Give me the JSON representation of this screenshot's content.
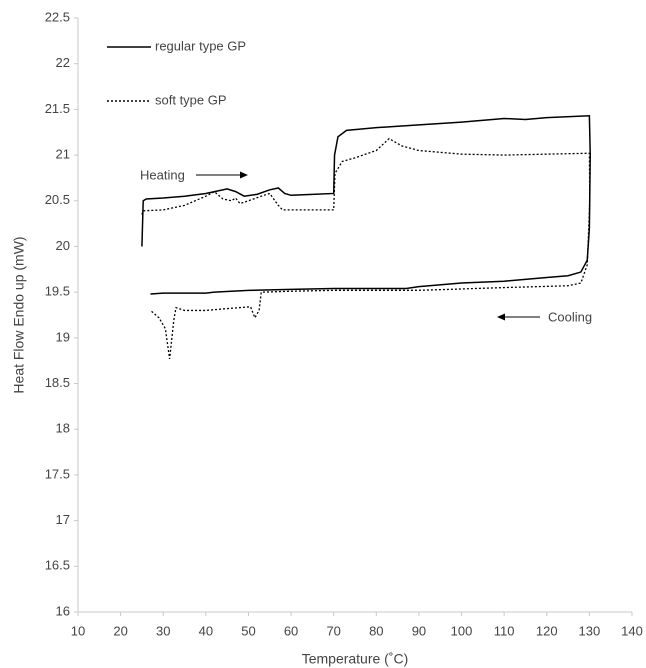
{
  "chart_data": {
    "type": "line",
    "x_label": "Temperature (˚C)",
    "y_label": "Heat Flow Endo up (mW)",
    "xlim": [
      10,
      140
    ],
    "xticks": [
      10,
      20,
      30,
      40,
      50,
      60,
      70,
      80,
      90,
      100,
      110,
      120,
      130,
      140
    ],
    "ylim": [
      16,
      22.5
    ],
    "yticks": [
      16,
      16.5,
      17,
      17.5,
      18,
      18.5,
      19,
      19.5,
      20,
      20.5,
      21,
      21.5,
      22,
      22.5
    ],
    "grid": false,
    "legend": "top-left",
    "annotations": [
      "Heating",
      "Cooling"
    ],
    "series": [
      {
        "name": "regular type GP",
        "color": "#000000",
        "line_style": "solid",
        "x": [
          25,
          25.3,
          26,
          30,
          35,
          40,
          43,
          45,
          47,
          49,
          52,
          55,
          57,
          58.5,
          60,
          65,
          70,
          70.2,
          71,
          73,
          80,
          90,
          100,
          110,
          115,
          120,
          130,
          130.2,
          130,
          129.5,
          128,
          125,
          120,
          110,
          100,
          90,
          87,
          80,
          70,
          60,
          50,
          42,
          40,
          35,
          30,
          27
        ],
        "values": [
          20.0,
          20.5,
          20.52,
          20.53,
          20.55,
          20.58,
          20.61,
          20.63,
          20.6,
          20.55,
          20.57,
          20.62,
          20.64,
          20.58,
          20.56,
          20.57,
          20.58,
          21.0,
          21.2,
          21.27,
          21.3,
          21.33,
          21.36,
          21.4,
          21.39,
          21.41,
          21.43,
          21.0,
          20.2,
          19.85,
          19.72,
          19.68,
          19.66,
          19.62,
          19.6,
          19.56,
          19.54,
          19.54,
          19.54,
          19.53,
          19.52,
          19.5,
          19.49,
          19.49,
          19.49,
          19.48
        ]
      },
      {
        "name": "soft type GP",
        "color": "#000000",
        "line_style": "dotted",
        "x": [
          25,
          25.3,
          30,
          35,
          40,
          42,
          44,
          46,
          47,
          48,
          50,
          53,
          55,
          57,
          58,
          65,
          70,
          70.3,
          72,
          75,
          80,
          83,
          86,
          90,
          100,
          110,
          120,
          130,
          130.1,
          129.5,
          128,
          125,
          110,
          90,
          70,
          60,
          53,
          52.5,
          51.5,
          50.5,
          45,
          40,
          35,
          33,
          32.5,
          31.5,
          30.5,
          29,
          27
        ],
        "values": [
          20.35,
          20.39,
          20.4,
          20.45,
          20.55,
          20.6,
          20.52,
          20.5,
          20.53,
          20.47,
          20.5,
          20.55,
          20.58,
          20.45,
          20.4,
          20.4,
          20.4,
          20.8,
          20.93,
          20.97,
          21.05,
          21.18,
          21.1,
          21.05,
          21.01,
          21.0,
          21.01,
          21.02,
          20.5,
          19.8,
          19.6,
          19.57,
          19.55,
          19.52,
          19.52,
          19.51,
          19.5,
          19.3,
          19.22,
          19.34,
          19.32,
          19.3,
          19.3,
          19.33,
          19.2,
          18.77,
          19.1,
          19.22,
          19.3
        ]
      }
    ]
  }
}
